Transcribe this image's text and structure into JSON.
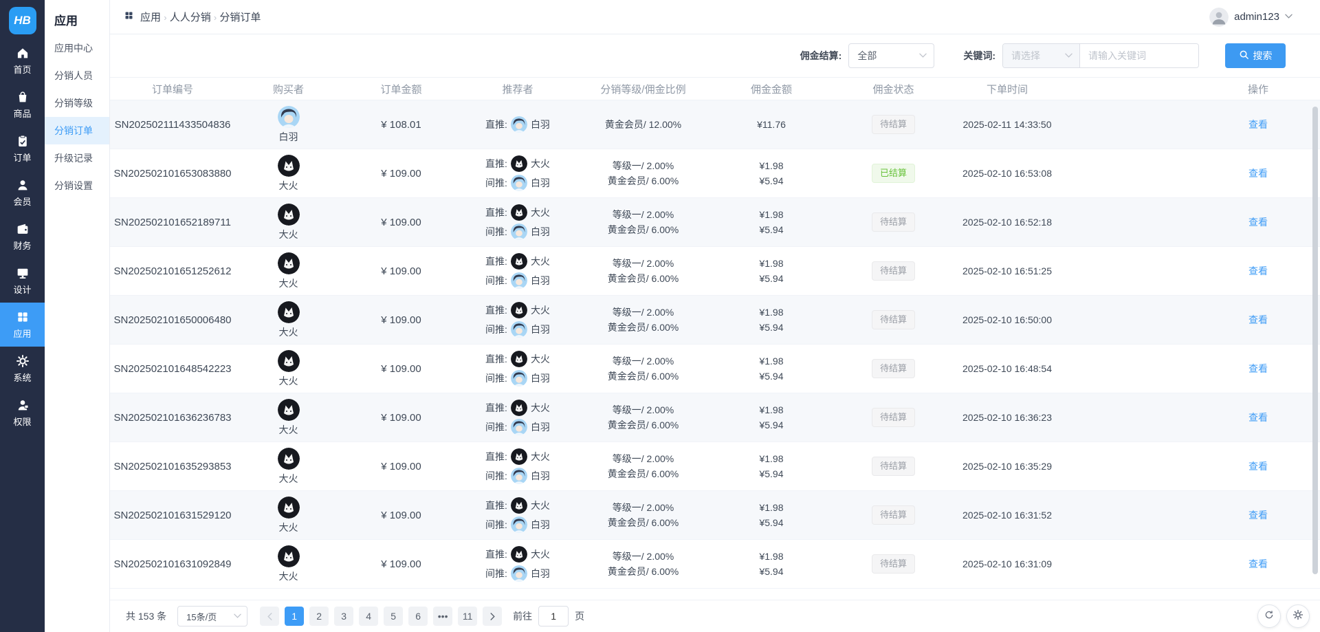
{
  "brand": {
    "logo_text": "HB"
  },
  "rail": {
    "items": [
      {
        "id": "home",
        "icon": "home-icon",
        "label": "首页"
      },
      {
        "id": "goods",
        "icon": "goods-icon",
        "label": "商品"
      },
      {
        "id": "orders",
        "icon": "orders-icon",
        "label": "订单"
      },
      {
        "id": "members",
        "icon": "members-icon",
        "label": "会员"
      },
      {
        "id": "finance",
        "icon": "finance-icon",
        "label": "财务"
      },
      {
        "id": "design",
        "icon": "design-icon",
        "label": "设计"
      },
      {
        "id": "apps",
        "icon": "apps-icon",
        "label": "应用",
        "active": true
      },
      {
        "id": "system",
        "icon": "system-icon",
        "label": "系统"
      },
      {
        "id": "permission",
        "icon": "permission-icon",
        "label": "权限"
      }
    ]
  },
  "submenu": {
    "title": "应用",
    "items": [
      {
        "id": "app-center",
        "label": "应用中心"
      },
      {
        "id": "distributors",
        "label": "分销人员"
      },
      {
        "id": "distribution-levels",
        "label": "分销等级"
      },
      {
        "id": "distribution-orders",
        "label": "分销订单",
        "active": true
      },
      {
        "id": "upgrade-records",
        "label": "升级记录"
      },
      {
        "id": "distribution-settings",
        "label": "分销设置"
      }
    ]
  },
  "breadcrumb": {
    "items": [
      "应用",
      "人人分销",
      "分销订单"
    ]
  },
  "user": {
    "name": "admin123"
  },
  "filters": {
    "commission_label": "佣金结算:",
    "commission_value": "全部",
    "keyword_label": "关键词:",
    "keyword_select_placeholder": "请选择",
    "keyword_input_placeholder": "请输入关键词",
    "search_label": "搜索"
  },
  "table": {
    "columns": [
      "订单编号",
      "购买者",
      "订单金额",
      "推荐者",
      "分销等级/佣金比例",
      "佣金金额",
      "佣金状态",
      "下单时间",
      "操作"
    ],
    "view_label": "查看",
    "rows": [
      {
        "sn": "SN202502111433504836",
        "buyer": {
          "name": "白羽",
          "avatar": "baiyu-avatar"
        },
        "amount": "¥ 108.01",
        "referrers": [
          {
            "label": "直推:",
            "name": "白羽",
            "avatar": "baiyu-avatar"
          }
        ],
        "levels": [
          "黄金会员/ 12.00%"
        ],
        "commissions": [
          "¥11.76"
        ],
        "status": {
          "label": "待结算",
          "type": "pending"
        },
        "time": "2025-02-11 14:33:50"
      },
      {
        "sn": "SN202502101653083880",
        "buyer": {
          "name": "大火",
          "avatar": "dahuo-avatar"
        },
        "amount": "¥ 109.00",
        "referrers": [
          {
            "label": "直推:",
            "name": "大火",
            "avatar": "dahuo-avatar"
          },
          {
            "label": "间推:",
            "name": "白羽",
            "avatar": "baiyu-avatar"
          }
        ],
        "levels": [
          "等级一/ 2.00%",
          "黄金会员/ 6.00%"
        ],
        "commissions": [
          "¥1.98",
          "¥5.94"
        ],
        "status": {
          "label": "已结算",
          "type": "settled"
        },
        "time": "2025-02-10 16:53:08"
      },
      {
        "sn": "SN202502101652189711",
        "buyer": {
          "name": "大火",
          "avatar": "dahuo-avatar"
        },
        "amount": "¥ 109.00",
        "referrers": [
          {
            "label": "直推:",
            "name": "大火",
            "avatar": "dahuo-avatar"
          },
          {
            "label": "间推:",
            "name": "白羽",
            "avatar": "baiyu-avatar"
          }
        ],
        "levels": [
          "等级一/ 2.00%",
          "黄金会员/ 6.00%"
        ],
        "commissions": [
          "¥1.98",
          "¥5.94"
        ],
        "status": {
          "label": "待结算",
          "type": "pending"
        },
        "time": "2025-02-10 16:52:18"
      },
      {
        "sn": "SN202502101651252612",
        "buyer": {
          "name": "大火",
          "avatar": "dahuo-avatar"
        },
        "amount": "¥ 109.00",
        "referrers": [
          {
            "label": "直推:",
            "name": "大火",
            "avatar": "dahuo-avatar"
          },
          {
            "label": "间推:",
            "name": "白羽",
            "avatar": "baiyu-avatar"
          }
        ],
        "levels": [
          "等级一/ 2.00%",
          "黄金会员/ 6.00%"
        ],
        "commissions": [
          "¥1.98",
          "¥5.94"
        ],
        "status": {
          "label": "待结算",
          "type": "pending"
        },
        "time": "2025-02-10 16:51:25"
      },
      {
        "sn": "SN202502101650006480",
        "buyer": {
          "name": "大火",
          "avatar": "dahuo-avatar"
        },
        "amount": "¥ 109.00",
        "referrers": [
          {
            "label": "直推:",
            "name": "大火",
            "avatar": "dahuo-avatar"
          },
          {
            "label": "间推:",
            "name": "白羽",
            "avatar": "baiyu-avatar"
          }
        ],
        "levels": [
          "等级一/ 2.00%",
          "黄金会员/ 6.00%"
        ],
        "commissions": [
          "¥1.98",
          "¥5.94"
        ],
        "status": {
          "label": "待结算",
          "type": "pending"
        },
        "time": "2025-02-10 16:50:00"
      },
      {
        "sn": "SN202502101648542223",
        "buyer": {
          "name": "大火",
          "avatar": "dahuo-avatar"
        },
        "amount": "¥ 109.00",
        "referrers": [
          {
            "label": "直推:",
            "name": "大火",
            "avatar": "dahuo-avatar"
          },
          {
            "label": "间推:",
            "name": "白羽",
            "avatar": "baiyu-avatar"
          }
        ],
        "levels": [
          "等级一/ 2.00%",
          "黄金会员/ 6.00%"
        ],
        "commissions": [
          "¥1.98",
          "¥5.94"
        ],
        "status": {
          "label": "待结算",
          "type": "pending"
        },
        "time": "2025-02-10 16:48:54"
      },
      {
        "sn": "SN202502101636236783",
        "buyer": {
          "name": "大火",
          "avatar": "dahuo-avatar"
        },
        "amount": "¥ 109.00",
        "referrers": [
          {
            "label": "直推:",
            "name": "大火",
            "avatar": "dahuo-avatar"
          },
          {
            "label": "间推:",
            "name": "白羽",
            "avatar": "baiyu-avatar"
          }
        ],
        "levels": [
          "等级一/ 2.00%",
          "黄金会员/ 6.00%"
        ],
        "commissions": [
          "¥1.98",
          "¥5.94"
        ],
        "status": {
          "label": "待结算",
          "type": "pending"
        },
        "time": "2025-02-10 16:36:23"
      },
      {
        "sn": "SN202502101635293853",
        "buyer": {
          "name": "大火",
          "avatar": "dahuo-avatar"
        },
        "amount": "¥ 109.00",
        "referrers": [
          {
            "label": "直推:",
            "name": "大火",
            "avatar": "dahuo-avatar"
          },
          {
            "label": "间推:",
            "name": "白羽",
            "avatar": "baiyu-avatar"
          }
        ],
        "levels": [
          "等级一/ 2.00%",
          "黄金会员/ 6.00%"
        ],
        "commissions": [
          "¥1.98",
          "¥5.94"
        ],
        "status": {
          "label": "待结算",
          "type": "pending"
        },
        "time": "2025-02-10 16:35:29"
      },
      {
        "sn": "SN202502101631529120",
        "buyer": {
          "name": "大火",
          "avatar": "dahuo-avatar"
        },
        "amount": "¥ 109.00",
        "referrers": [
          {
            "label": "直推:",
            "name": "大火",
            "avatar": "dahuo-avatar"
          },
          {
            "label": "间推:",
            "name": "白羽",
            "avatar": "baiyu-avatar"
          }
        ],
        "levels": [
          "等级一/ 2.00%",
          "黄金会员/ 6.00%"
        ],
        "commissions": [
          "¥1.98",
          "¥5.94"
        ],
        "status": {
          "label": "待结算",
          "type": "pending"
        },
        "time": "2025-02-10 16:31:52"
      },
      {
        "sn": "SN202502101631092849",
        "buyer": {
          "name": "大火",
          "avatar": "dahuo-avatar"
        },
        "amount": "¥ 109.00",
        "referrers": [
          {
            "label": "直推:",
            "name": "大火",
            "avatar": "dahuo-avatar"
          },
          {
            "label": "间推:",
            "name": "白羽",
            "avatar": "baiyu-avatar"
          }
        ],
        "levels": [
          "等级一/ 2.00%",
          "黄金会员/ 6.00%"
        ],
        "commissions": [
          "¥1.98",
          "¥5.94"
        ],
        "status": {
          "label": "待结算",
          "type": "pending"
        },
        "time": "2025-02-10 16:31:09"
      }
    ]
  },
  "pagination": {
    "total_label": "共 153 条",
    "page_size_value": "15条/页",
    "pages": [
      "1",
      "2",
      "3",
      "4",
      "5",
      "6",
      "•••",
      "11"
    ],
    "active_page": "1",
    "goto_label": "前往",
    "goto_value": "1",
    "goto_unit": "页"
  },
  "colors": {
    "accent": "#3d9cf6",
    "rail_bg": "#252e45",
    "settled": "#67c23a",
    "pending": "#909399"
  }
}
